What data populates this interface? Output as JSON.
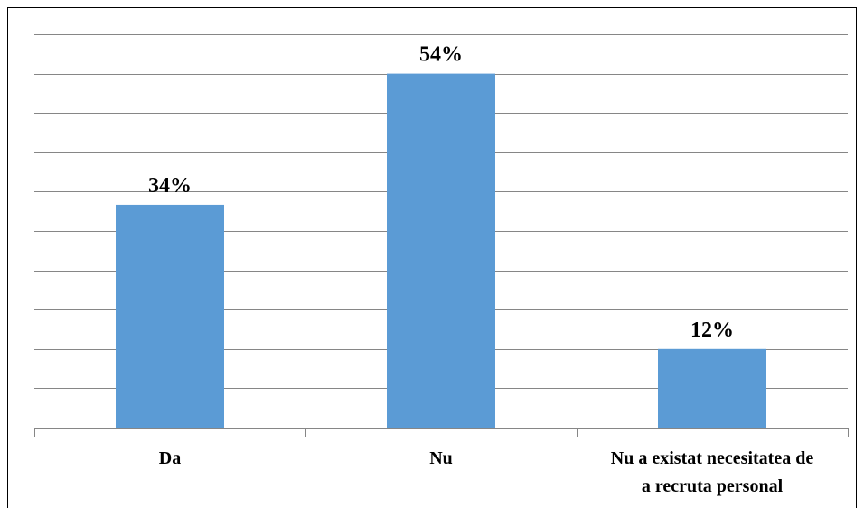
{
  "chart_data": {
    "type": "bar",
    "categories": [
      "Da",
      "Nu",
      "Nu a existat necesitatea de a recruta personal"
    ],
    "category_lines": [
      [
        "Da"
      ],
      [
        "Nu"
      ],
      [
        "Nu a existat necesitatea de",
        "a recruta personal"
      ]
    ],
    "values": [
      34,
      54,
      12
    ],
    "data_labels": [
      "34%",
      "54%",
      "12%"
    ],
    "ylim": [
      0,
      60
    ],
    "title": "",
    "xlabel": "",
    "ylabel": "",
    "grid": true,
    "legend": "none",
    "colors": {
      "bar": "#5B9BD5",
      "gridline": "#868686",
      "axis": "#868686"
    }
  }
}
